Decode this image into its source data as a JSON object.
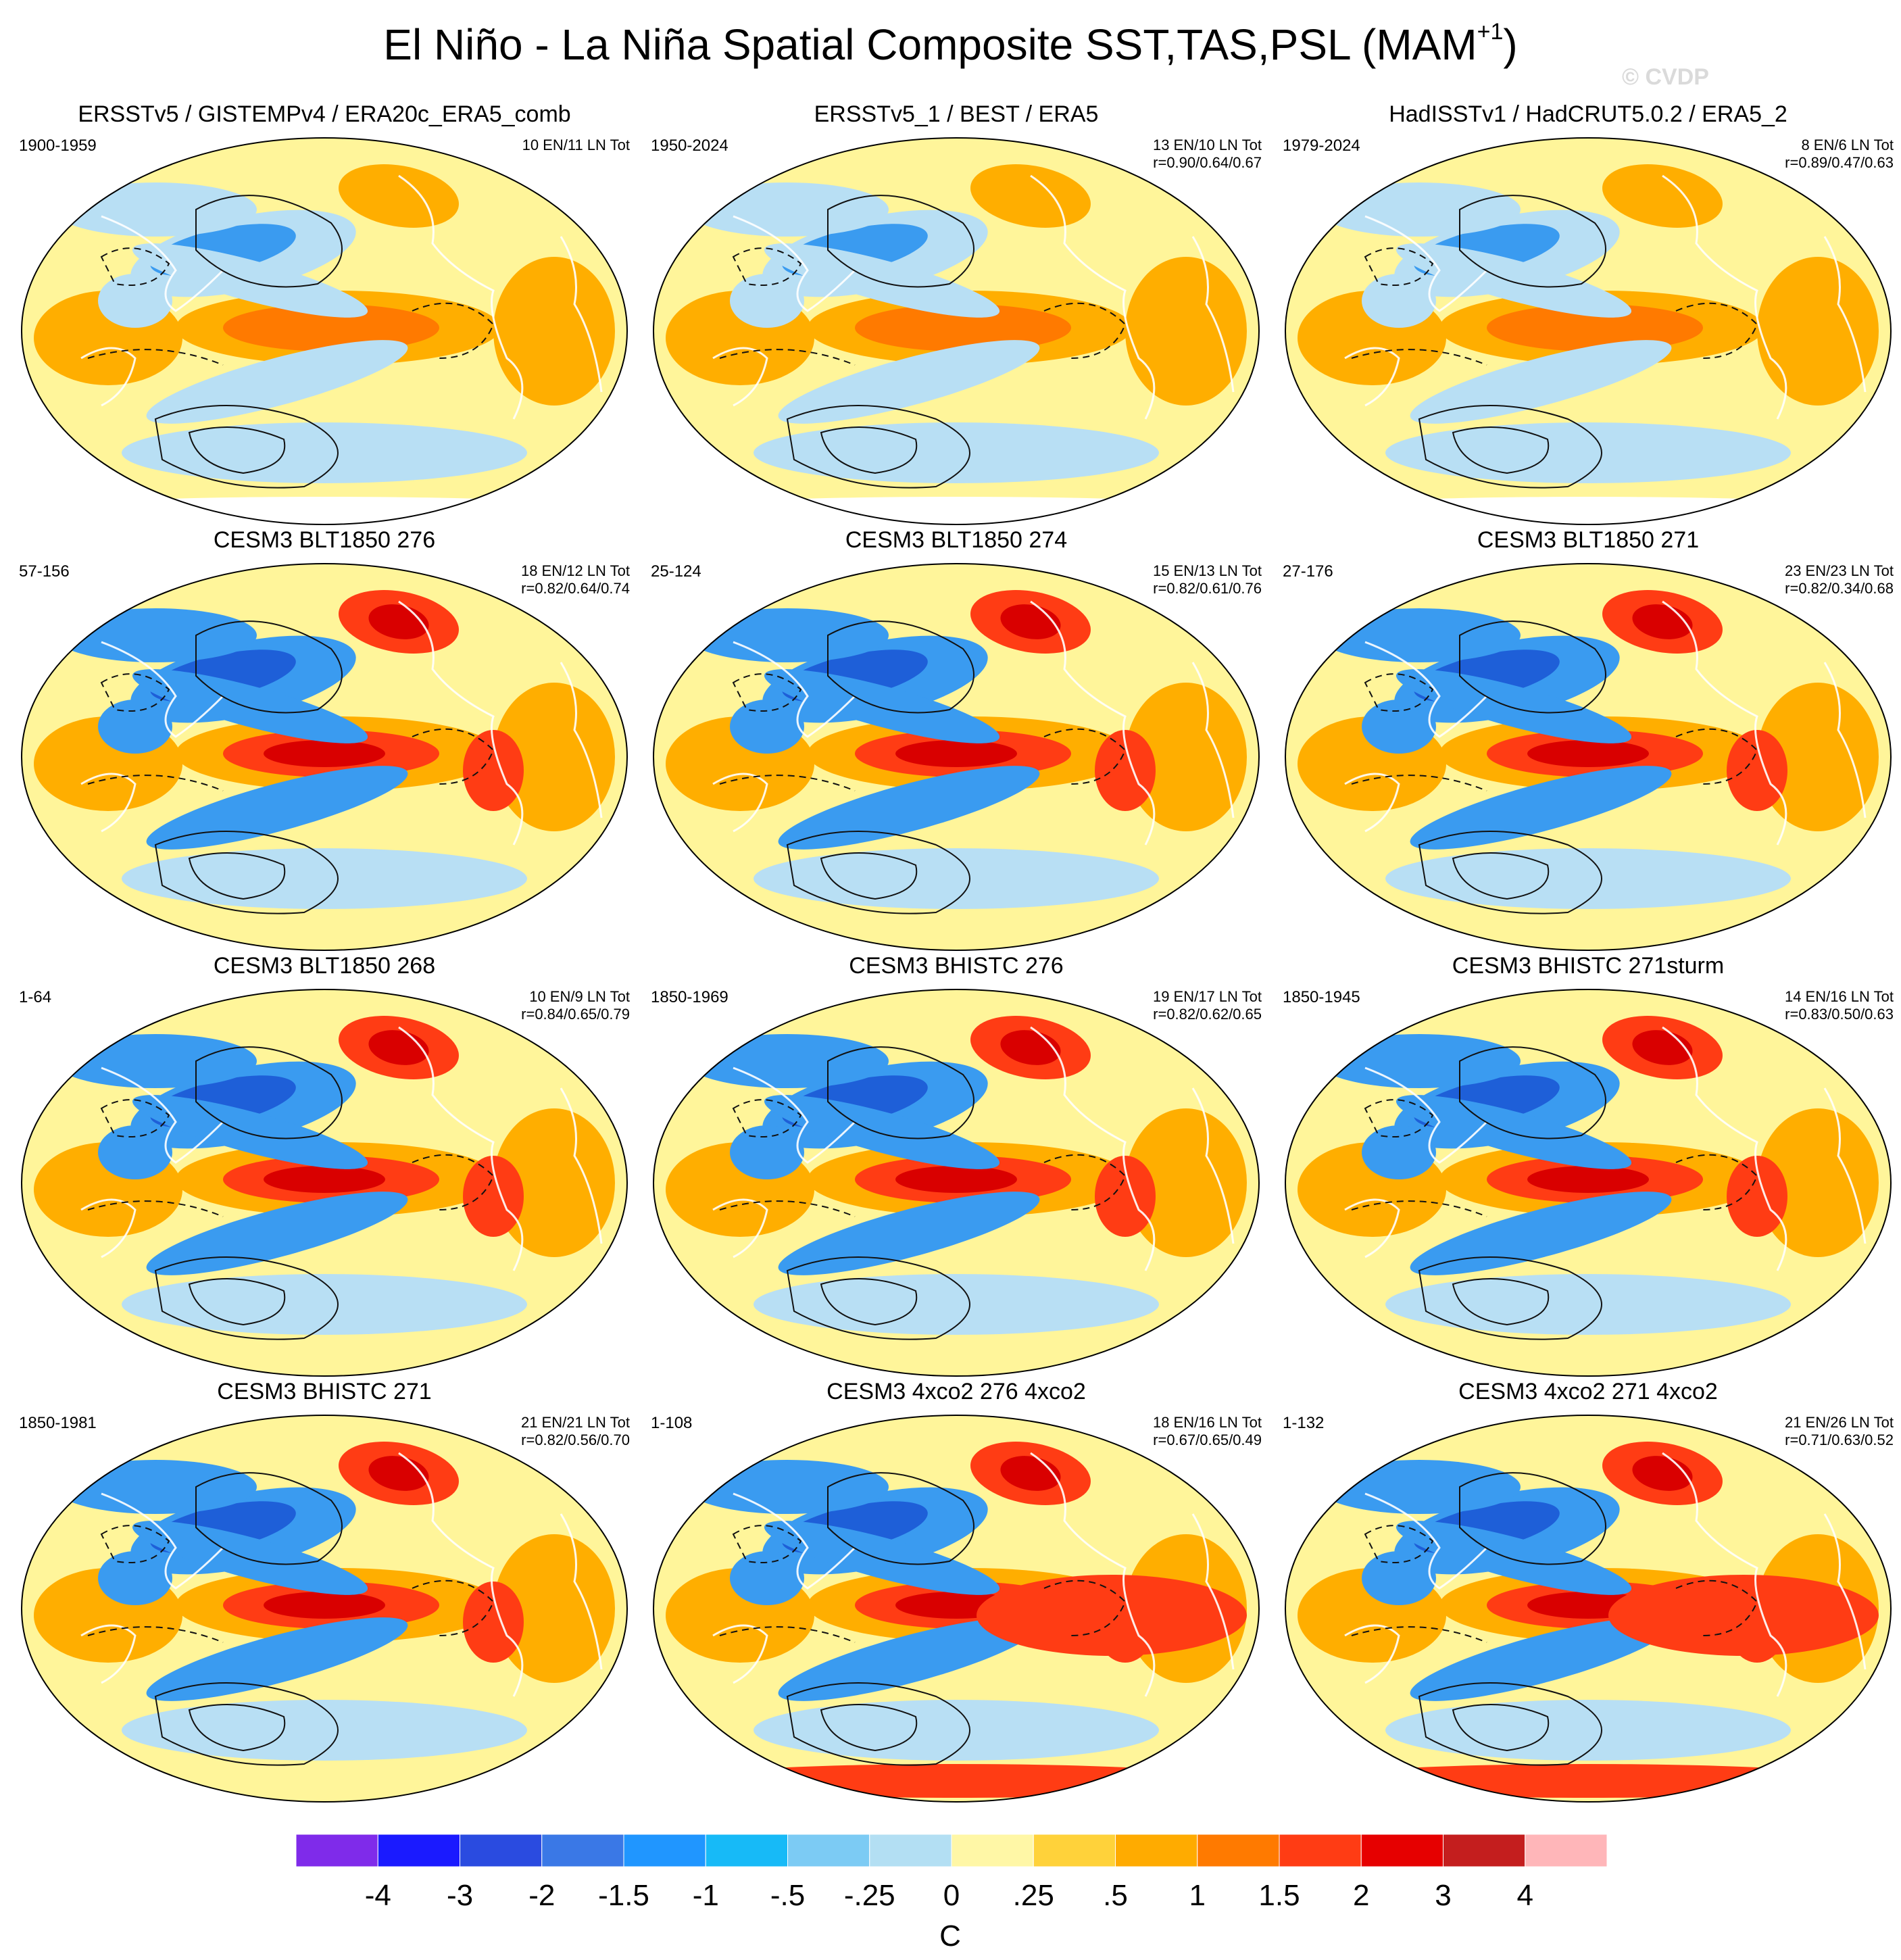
{
  "figure": {
    "title": "El Niño - La Niña Spatial Composite SST,TAS,PSL (MAM",
    "title_sup": "+1",
    "title_end": ")",
    "watermark": "© CVDP"
  },
  "panels": [
    {
      "title": "ERSSTv5 / GISTEMPv4 / ERA20c_ERA5_comb",
      "years": "1900-1959",
      "counts": "10 EN/11 LN Tot",
      "corr": ""
    },
    {
      "title": "ERSSTv5_1 / BEST / ERA5",
      "years": "1950-2024",
      "counts": "13 EN/10 LN Tot",
      "corr": "r=0.90/0.64/0.67"
    },
    {
      "title": "HadISSTv1 / HadCRUT5.0.2 / ERA5_2",
      "years": "1979-2024",
      "counts": "8 EN/6 LN Tot",
      "corr": "r=0.89/0.47/0.63"
    },
    {
      "title": "CESM3 BLT1850 276",
      "years": "57-156",
      "counts": "18 EN/12 LN Tot",
      "corr": "r=0.82/0.64/0.74"
    },
    {
      "title": "CESM3 BLT1850 274",
      "years": "25-124",
      "counts": "15 EN/13 LN Tot",
      "corr": "r=0.82/0.61/0.76"
    },
    {
      "title": "CESM3 BLT1850 271",
      "years": "27-176",
      "counts": "23 EN/23 LN Tot",
      "corr": "r=0.82/0.34/0.68"
    },
    {
      "title": "CESM3 BLT1850 268",
      "years": "1-64",
      "counts": "10 EN/9 LN Tot",
      "corr": "r=0.84/0.65/0.79"
    },
    {
      "title": "CESM3 BHISTC 276",
      "years": "1850-1969",
      "counts": "19 EN/17 LN Tot",
      "corr": "r=0.82/0.62/0.65"
    },
    {
      "title": "CESM3 BHISTC 271sturm",
      "years": "1850-1945",
      "counts": "14 EN/16 LN Tot",
      "corr": "r=0.83/0.50/0.63"
    },
    {
      "title": "CESM3 BHISTC 271",
      "years": "1850-1981",
      "counts": "21 EN/21 LN Tot",
      "corr": "r=0.82/0.56/0.70"
    },
    {
      "title": "CESM3 4xco2 276 4xco2",
      "years": "1-108",
      "counts": "18 EN/16 LN Tot",
      "corr": "r=0.67/0.65/0.49"
    },
    {
      "title": "CESM3 4xco2 271 4xco2",
      "years": "1-132",
      "counts": "21 EN/26 LN Tot",
      "corr": "r=0.71/0.63/0.52"
    }
  ],
  "colorbar": {
    "unit": "C",
    "labels": [
      "-4",
      "-3",
      "-2",
      "-1.5",
      "-1",
      "-.5",
      "-.25",
      "0",
      ".25",
      ".5",
      "1",
      "1.5",
      "2",
      "3",
      "4"
    ],
    "colors": [
      "#7f2bea",
      "#1a1aff",
      "#2a4be0",
      "#3a78e6",
      "#2096ff",
      "#17baf7",
      "#7ccbf4",
      "#b3dff3",
      "#fff7a6",
      "#ffd23a",
      "#ffab00",
      "#ff7a00",
      "#ff3c14",
      "#e60000",
      "#c41e1e",
      "#ffb6b9"
    ]
  }
}
